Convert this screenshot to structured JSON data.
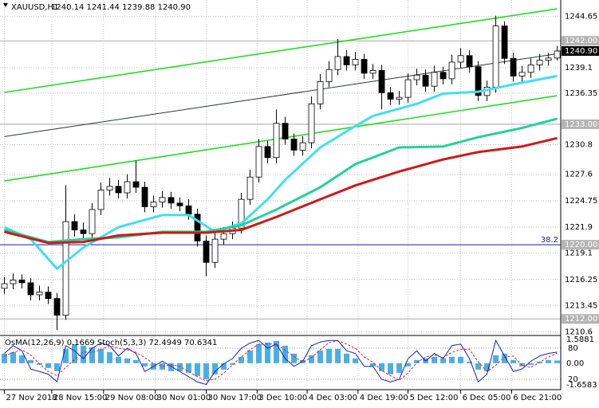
{
  "chart_data": [
    {
      "type": "candlestick",
      "title": "XAUUSD,H1",
      "header": "1240.14 1241.44 1239.88 1240.90",
      "xlim": [
        -0.5,
        63.4
      ],
      "ylim": [
        1210.3,
        1246.4
      ],
      "yticks": [
        1244.65,
        1239.1,
        1236.35,
        1230.8,
        1227.6,
        1224.75,
        1221.9,
        1219.1,
        1216.25,
        1213.45,
        1210.6
      ],
      "grid": true,
      "xticks": [
        {
          "value": 0,
          "label": "27 Nov 2018"
        },
        {
          "value": 5.4,
          "label": "28 Nov 15:00"
        },
        {
          "value": 11.3,
          "label": "29 Nov 08:00"
        },
        {
          "value": 17.2,
          "label": "30 Nov 01:00"
        },
        {
          "value": 23,
          "label": "30 Nov 17:00"
        },
        {
          "value": 28.8,
          "label": "3 Dec 10:00"
        },
        {
          "value": 34.5,
          "label": "4 Dec 03:00"
        },
        {
          "value": 40.3,
          "label": "4 Dec 19:00"
        },
        {
          "value": 46,
          "label": "5 Dec 12:00"
        },
        {
          "value": 52,
          "label": "6 Dec 05:00"
        },
        {
          "value": 57.8,
          "label": "6 Dec 21:00"
        }
      ],
      "up_color": "#ffffff",
      "down_color": "#000000",
      "open": [
        1215.3,
        1215.8,
        1216.2,
        1215.9,
        1214.6,
        1214.9,
        1214.2,
        1212.4,
        1222.5,
        1221.6,
        1221.2,
        1223.8,
        1225.9,
        1226.3,
        1225.6,
        1226.8,
        1226.2,
        1224.1,
        1224.6,
        1225.1,
        1224.5,
        1224.2,
        1223.3,
        1220.4,
        1218.1,
        1220.6,
        1221.2,
        1221.8,
        1224.9,
        1227.3,
        1230.6,
        1229.4,
        1233.1,
        1231.4,
        1230.2,
        1231.0,
        1235.2,
        1237.6,
        1238.9,
        1240.3,
        1239.4,
        1240.0,
        1238.5,
        1238.8,
        1236.4,
        1235.7,
        1235.9,
        1237.8,
        1238.3,
        1237.1,
        1238.6,
        1237.9,
        1239.7,
        1240.4,
        1239.2,
        1236.1,
        1237.0,
        1243.6,
        1240.1,
        1238.2,
        1238.6,
        1239.4,
        1239.9,
        1240.14
      ],
      "high": [
        1216.5,
        1216.9,
        1216.8,
        1216.4,
        1215.6,
        1215.5,
        1214.8,
        1226.4,
        1223.3,
        1222.4,
        1224.5,
        1226.7,
        1227.2,
        1227.0,
        1227.6,
        1229.1,
        1226.8,
        1225.3,
        1225.8,
        1225.7,
        1225.1,
        1224.9,
        1223.9,
        1221.0,
        1221.3,
        1221.9,
        1222.5,
        1225.6,
        1228.1,
        1231.4,
        1231.2,
        1234.6,
        1233.8,
        1232.0,
        1231.7,
        1236.0,
        1238.4,
        1239.8,
        1242.2,
        1241.0,
        1240.8,
        1240.6,
        1239.5,
        1239.4,
        1237.0,
        1236.6,
        1238.5,
        1239.0,
        1238.9,
        1239.3,
        1239.2,
        1240.5,
        1241.2,
        1241.0,
        1239.8,
        1237.7,
        1244.7,
        1244.1,
        1240.7,
        1239.3,
        1240.1,
        1240.6,
        1240.7,
        1241.44
      ],
      "low": [
        1214.7,
        1215.2,
        1215.3,
        1214.0,
        1214.0,
        1213.6,
        1210.8,
        1211.9,
        1220.9,
        1220.5,
        1220.7,
        1223.2,
        1225.3,
        1225.0,
        1225.0,
        1225.6,
        1223.5,
        1223.5,
        1224.0,
        1223.9,
        1223.6,
        1222.7,
        1219.8,
        1216.6,
        1217.5,
        1220.0,
        1220.6,
        1221.2,
        1224.3,
        1226.7,
        1228.8,
        1228.8,
        1230.8,
        1229.6,
        1229.6,
        1230.4,
        1234.6,
        1237.0,
        1238.3,
        1238.8,
        1238.8,
        1237.9,
        1237.9,
        1234.6,
        1235.1,
        1235.1,
        1235.3,
        1237.2,
        1236.5,
        1236.5,
        1237.3,
        1237.3,
        1239.1,
        1238.6,
        1235.5,
        1235.5,
        1236.4,
        1239.5,
        1237.6,
        1237.6,
        1238.0,
        1238.8,
        1239.3,
        1239.88
      ],
      "close": [
        1215.8,
        1216.2,
        1215.9,
        1214.6,
        1214.9,
        1214.2,
        1212.4,
        1222.5,
        1221.6,
        1221.2,
        1223.8,
        1225.9,
        1226.3,
        1225.6,
        1226.8,
        1226.2,
        1224.1,
        1224.6,
        1225.1,
        1224.5,
        1224.2,
        1223.3,
        1220.4,
        1218.1,
        1220.6,
        1221.2,
        1221.8,
        1224.9,
        1227.3,
        1230.6,
        1229.4,
        1233.1,
        1231.4,
        1230.2,
        1231.0,
        1235.2,
        1237.6,
        1238.9,
        1240.3,
        1239.4,
        1240.0,
        1238.5,
        1238.8,
        1236.4,
        1235.7,
        1235.9,
        1237.8,
        1238.3,
        1237.1,
        1238.6,
        1237.9,
        1239.7,
        1240.4,
        1239.2,
        1236.1,
        1237.0,
        1243.6,
        1240.1,
        1238.2,
        1238.6,
        1239.4,
        1239.9,
        1240.14,
        1240.9
      ],
      "series": [
        {
          "color": "#3fe0f0",
          "x": [
            0,
            3,
            6,
            9,
            13,
            18,
            21,
            24,
            27,
            30,
            32,
            36,
            40,
            42,
            47,
            50,
            54,
            58,
            63
          ],
          "values": [
            1221.9,
            1220.6,
            1217.4,
            1219.7,
            1221.9,
            1223.2,
            1223.2,
            1221.4,
            1222.3,
            1224.9,
            1227.0,
            1230.5,
            1232.8,
            1233.9,
            1235.2,
            1236.3,
            1236.5,
            1237.3,
            1238.2
          ]
        },
        {
          "color": "#22d29a",
          "x": [
            0,
            5,
            9,
            13,
            18,
            23,
            27,
            31,
            36,
            40,
            45,
            50,
            54,
            59,
            63
          ],
          "values": [
            1221.6,
            1220.3,
            1220.6,
            1220.8,
            1221.4,
            1221.4,
            1222.1,
            1223.8,
            1226.2,
            1228.7,
            1230.5,
            1230.6,
            1231.6,
            1232.6,
            1233.6
          ]
        },
        {
          "color": "#d01818",
          "x": [
            0,
            5,
            9,
            13,
            18,
            23,
            27,
            31,
            36,
            40,
            45,
            50,
            54,
            59,
            63
          ],
          "values": [
            1221.4,
            1220.2,
            1220.3,
            1221.0,
            1221.3,
            1221.3,
            1221.6,
            1223.0,
            1224.9,
            1226.4,
            1227.9,
            1229.2,
            1230.0,
            1230.6,
            1231.5
          ]
        }
      ],
      "trendlines": [
        {
          "color": "#1ee01e",
          "x": [
            0,
            63
          ],
          "values": [
            1236.43,
            1245.45
          ]
        },
        {
          "color": "#2a3a2a",
          "x": [
            0,
            63
          ],
          "values": [
            1231.67,
            1240.6
          ]
        },
        {
          "color": "#1ee01e",
          "x": [
            0,
            63
          ],
          "values": [
            1226.88,
            1236.08
          ]
        }
      ],
      "levels": [
        {
          "value": 1242,
          "label": "1242.00",
          "color": "#a8a8a8"
        },
        {
          "value": 1233,
          "label": "1233.00",
          "color": "#a8a8a8"
        },
        {
          "value": 1220,
          "label": "1220.00",
          "color": "#1a1aa0",
          "note": "38.2"
        },
        {
          "value": 1212,
          "label": "1212.00",
          "color": "#a8a8a8"
        }
      ],
      "last_price": {
        "value": 1240.9,
        "label": "1240.90"
      }
    },
    {
      "type": "oscillator",
      "title": "OsMA(12,26,9) 0.1669 Stoch(5,3,3) 72.4949 70.6341",
      "ylim": [
        0,
        100
      ],
      "yticks": [
        80,
        20
      ],
      "grid": true,
      "y2lim": [
        -1.6583,
        1.5881
      ],
      "y2ticks": [
        1.5881,
        {
          "value": 0,
          "label": "0.00"
        },
        -1.6583
      ],
      "bars": {
        "color": "#4aaee6",
        "axis": "y2",
        "values": [
          0.6,
          0.7,
          0.5,
          0.2,
          -0.1,
          -0.3,
          -0.5,
          0.9,
          1.2,
          1.1,
          1.0,
          0.9,
          0.7,
          0.4,
          0.3,
          0.2,
          -0.2,
          -0.4,
          -0.4,
          -0.5,
          -0.5,
          -0.6,
          -0.8,
          -1.0,
          -0.7,
          -0.4,
          -0.1,
          0.4,
          0.8,
          1.2,
          1.3,
          1.4,
          1.1,
          0.6,
          0.2,
          0.5,
          0.8,
          0.9,
          0.9,
          0.6,
          0.3,
          0.0,
          -0.2,
          -0.5,
          -0.7,
          -0.6,
          -0.2,
          0.2,
          0.3,
          0.4,
          0.3,
          0.4,
          0.4,
          0.1,
          -0.4,
          -0.5,
          0.5,
          0.6,
          0.2,
          -0.2,
          -0.1,
          0.1,
          0.2,
          0.1669
        ]
      },
      "series": [
        {
          "color": "#1020c8",
          "values": [
            70,
            85,
            75,
            40,
            35,
            30,
            15,
            85,
            75,
            60,
            80,
            90,
            85,
            65,
            80,
            70,
            35,
            45,
            55,
            45,
            35,
            25,
            15,
            10,
            35,
            50,
            60,
            80,
            90,
            95,
            80,
            88,
            60,
            45,
            55,
            85,
            92,
            95,
            95,
            75,
            70,
            45,
            45,
            20,
            15,
            20,
            60,
            75,
            55,
            70,
            60,
            85,
            88,
            60,
            15,
            30,
            95,
            65,
            35,
            40,
            55,
            65,
            70,
            72.4949
          ]
        },
        {
          "color": "#e02020",
          "dashed": true,
          "values": [
            65,
            72,
            77,
            67,
            50,
            35,
            27,
            43,
            58,
            73,
            72,
            77,
            85,
            80,
            77,
            72,
            62,
            50,
            45,
            48,
            45,
            35,
            25,
            17,
            20,
            32,
            48,
            63,
            77,
            88,
            88,
            88,
            76,
            64,
            53,
            62,
            77,
            91,
            94,
            88,
            80,
            63,
            53,
            37,
            27,
            18,
            32,
            52,
            63,
            67,
            62,
            72,
            78,
            78,
            54,
            35,
            47,
            63,
            65,
            47,
            43,
            53,
            63,
            70.6341
          ]
        }
      ]
    }
  ]
}
